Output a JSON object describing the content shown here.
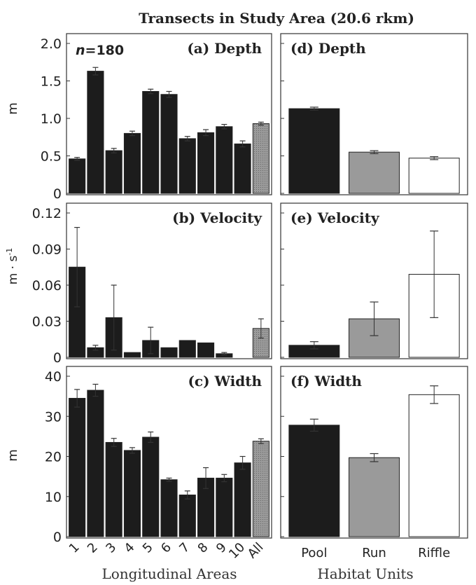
{
  "figure": {
    "title": "Transects in Study Area (20.6 rkm)",
    "n_label_italic": "n",
    "n_label_rest": "=180",
    "left_xlabel": "Longitudinal Areas",
    "right_xlabel": "Habitat Units",
    "units": [
      "m",
      "m · s",
      "m"
    ],
    "velocity_unit_superscript": "-1"
  },
  "chart_data": [
    {
      "type": "bar",
      "title": "(a) Depth",
      "ylabel": "m",
      "categories": [
        "1",
        "2",
        "3",
        "4",
        "5",
        "6",
        "7",
        "8",
        "9",
        "10",
        "All"
      ],
      "values": [
        0.46,
        1.63,
        0.57,
        0.8,
        1.36,
        1.32,
        0.73,
        0.81,
        0.89,
        0.66,
        0.93
      ],
      "errors": [
        0.02,
        0.05,
        0.03,
        0.03,
        0.03,
        0.04,
        0.03,
        0.04,
        0.03,
        0.04,
        0.02
      ],
      "ylim": [
        0,
        2.0
      ],
      "yticks": [
        "0",
        "0.5",
        "1.0",
        "1.5",
        "2.0"
      ],
      "colors": [
        "#1c1c1c",
        "#9a9a9a"
      ]
    },
    {
      "type": "bar",
      "title": "(b) Velocity",
      "ylabel": "m · s-1",
      "categories": [
        "1",
        "2",
        "3",
        "4",
        "5",
        "6",
        "7",
        "8",
        "9",
        "10",
        "All"
      ],
      "values": [
        0.075,
        0.008,
        0.033,
        0.004,
        0.014,
        0.008,
        0.014,
        0.012,
        0.003,
        0.0,
        0.024
      ],
      "errors": [
        0.033,
        0.002,
        0.027,
        0.0,
        0.011,
        0.0,
        0.0,
        0.0,
        0.001,
        0.0,
        0.008
      ],
      "ylim": [
        0,
        0.12
      ],
      "yticks": [
        "0",
        "0.03",
        "0.06",
        "0.09",
        "0.12"
      ],
      "colors": [
        "#1c1c1c",
        "#9a9a9a"
      ]
    },
    {
      "type": "bar",
      "title": "(c) Width",
      "ylabel": "m",
      "categories": [
        "1",
        "2",
        "3",
        "4",
        "5",
        "6",
        "7",
        "8",
        "9",
        "10",
        "All"
      ],
      "values": [
        34.5,
        36.5,
        23.5,
        21.5,
        24.8,
        14.2,
        10.4,
        14.6,
        14.6,
        18.4,
        23.8
      ],
      "errors": [
        2.2,
        1.5,
        1.0,
        0.7,
        1.3,
        0.4,
        1.0,
        2.6,
        0.9,
        1.6,
        0.6
      ],
      "ylim": [
        0,
        40
      ],
      "yticks": [
        "0",
        "10",
        "20",
        "30",
        "40"
      ],
      "colors": [
        "#1c1c1c",
        "#9a9a9a"
      ]
    },
    {
      "type": "bar",
      "title": "(d) Depth",
      "categories": [
        "Pool",
        "Run",
        "Riffle"
      ],
      "values": [
        1.13,
        0.55,
        0.47
      ],
      "errors": [
        0.02,
        0.02,
        0.02
      ],
      "ylim": [
        0,
        2.0
      ],
      "colors": [
        "#1c1c1c",
        "#9a9a9a",
        "#ffffff"
      ]
    },
    {
      "type": "bar",
      "title": "(e) Velocity",
      "categories": [
        "Pool",
        "Run",
        "Riffle"
      ],
      "values": [
        0.01,
        0.032,
        0.069
      ],
      "errors": [
        0.003,
        0.014,
        0.036
      ],
      "ylim": [
        0,
        0.12
      ],
      "colors": [
        "#1c1c1c",
        "#9a9a9a",
        "#ffffff"
      ]
    },
    {
      "type": "bar",
      "title": "(f) Width",
      "categories": [
        "Pool",
        "Run",
        "Riffle"
      ],
      "values": [
        27.8,
        19.7,
        35.4
      ],
      "errors": [
        1.5,
        1.0,
        2.2
      ],
      "ylim": [
        0,
        40
      ],
      "colors": [
        "#1c1c1c",
        "#9a9a9a",
        "#ffffff"
      ]
    }
  ]
}
